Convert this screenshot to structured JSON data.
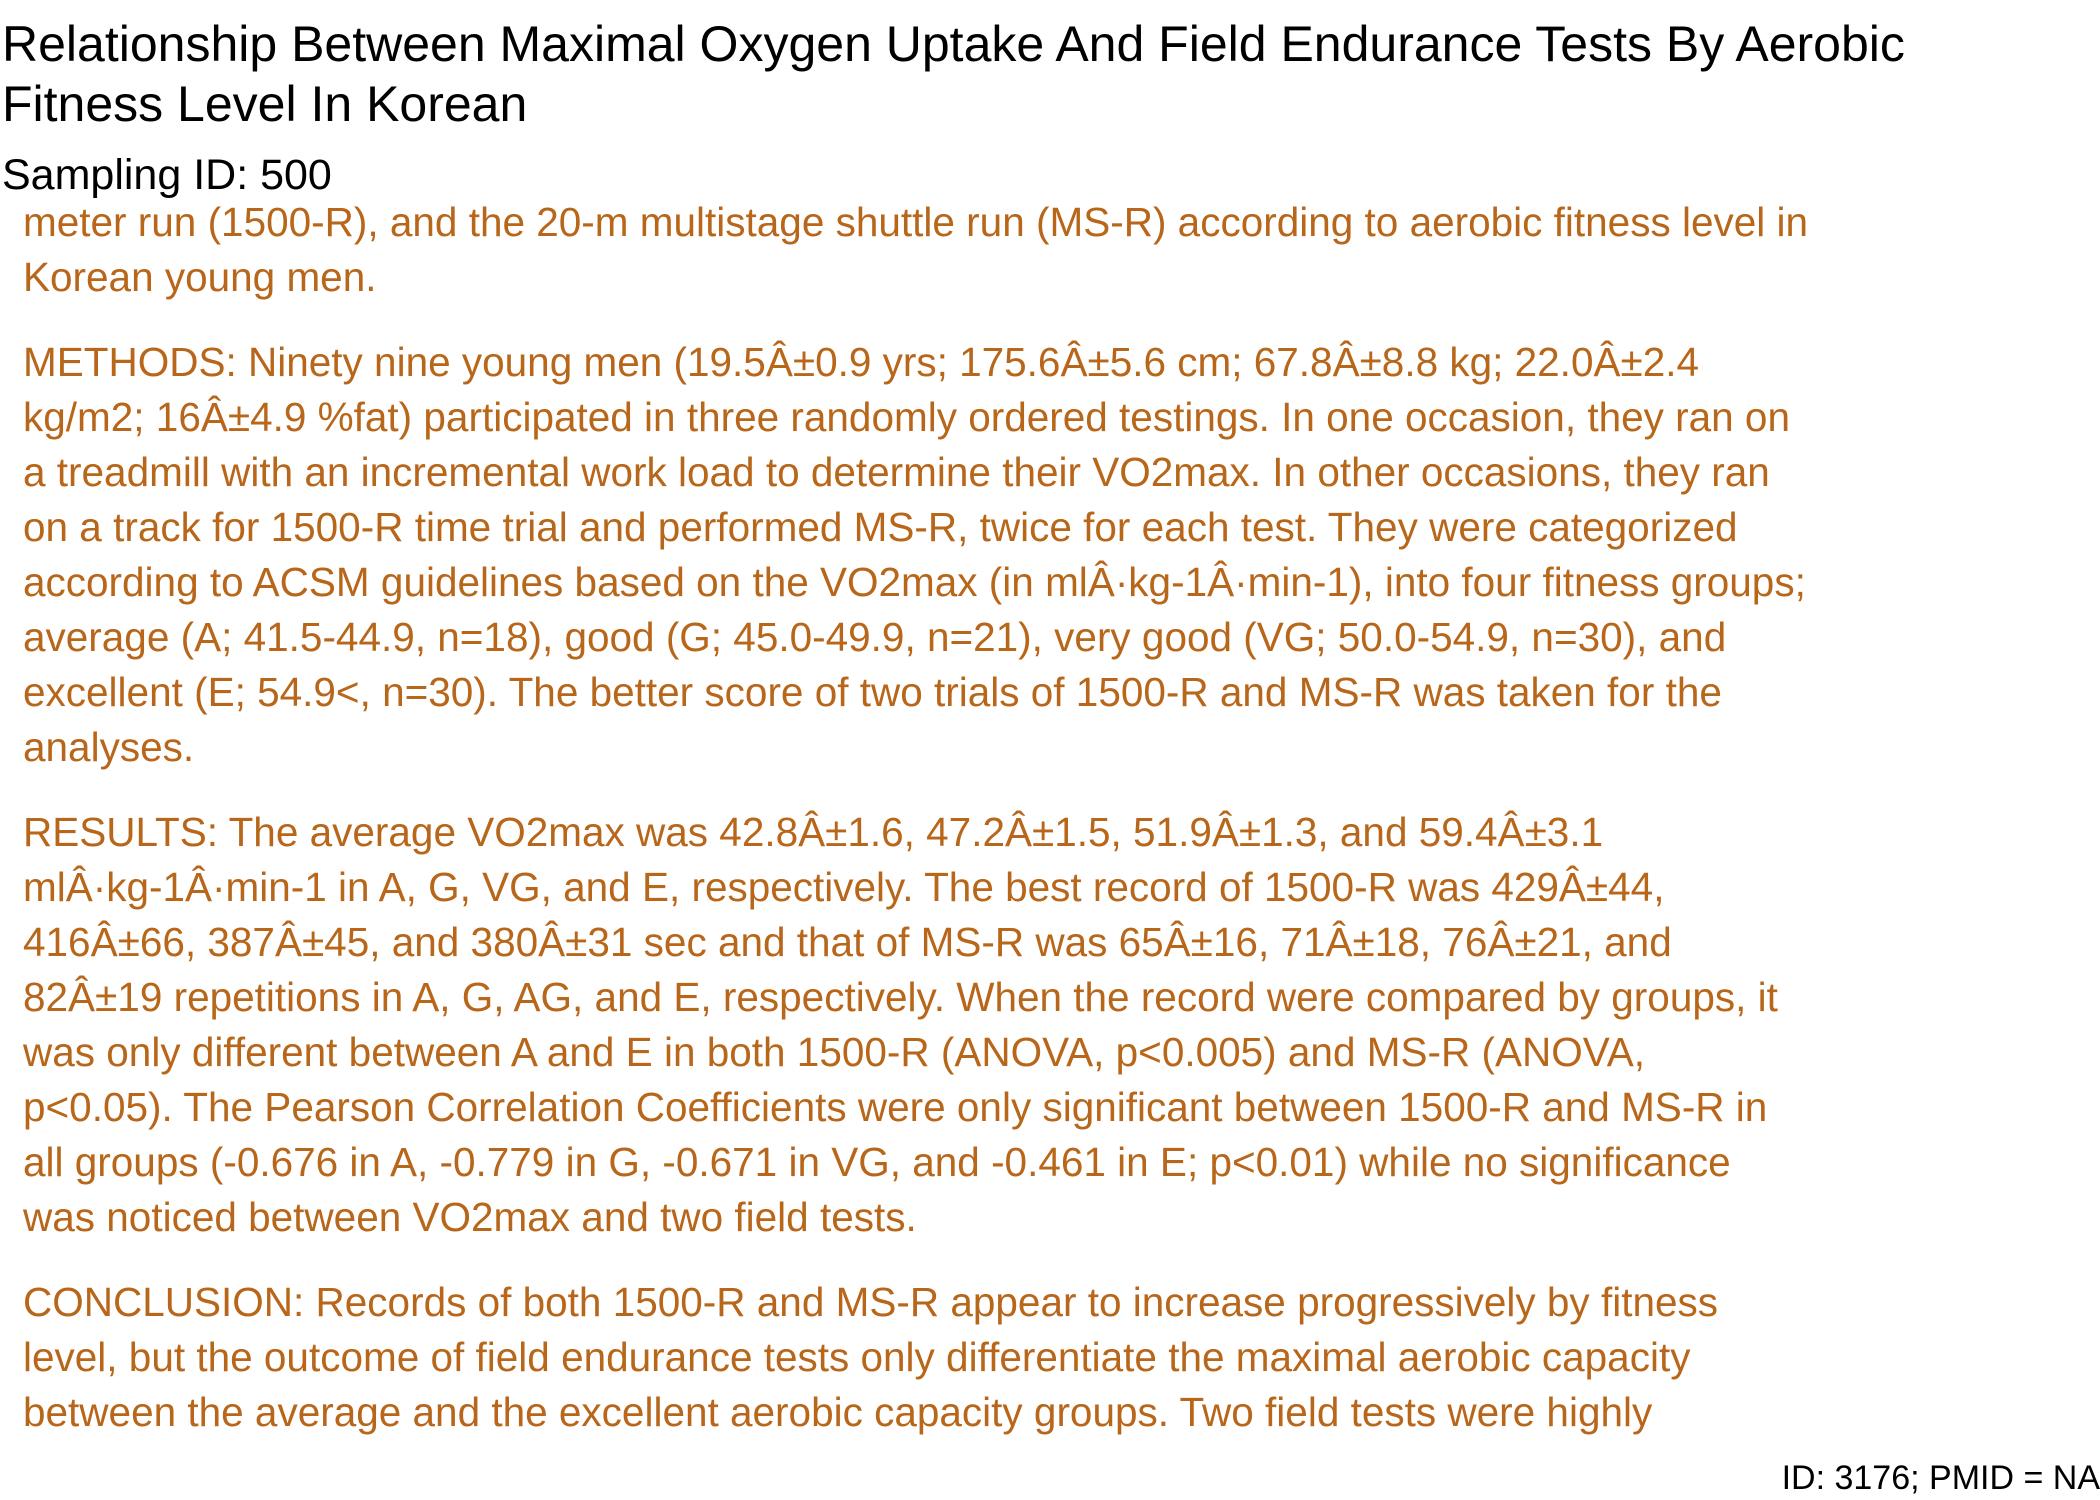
{
  "title_lines": [
    "Relationship Between Maximal Oxygen Uptake And Field Endurance Tests By Aerobic",
    "Fitness Level In Korean"
  ],
  "sampling_id": "Sampling ID: 500",
  "abstract": {
    "color": "#b8661a",
    "paragraphs": [
      {
        "lines": [
          "meter run (1500-R), and the 20-m multistage shuttle run (MS-R) according to aerobic fitness level in",
          "Korean young men."
        ]
      },
      {
        "lines": [
          "METHODS: Ninety nine young men (19.5Â±0.9 yrs; 175.6Â±5.6 cm; 67.8Â±8.8 kg; 22.0Â±2.4",
          "kg/m2; 16Â±4.9 %fat) participated in three randomly ordered testings. In one occasion, they ran on",
          "a treadmill with an incremental work load to determine their VO2max. In other occasions, they ran",
          "on a track for 1500-R time trial and performed MS-R, twice for each test. They were categorized",
          "according to ACSM guidelines based on the VO2max (in mlÂ·kg-1Â·min-1), into four fitness groups;",
          "average (A; 41.5-44.9, n=18), good (G; 45.0-49.9, n=21), very good (VG; 50.0-54.9, n=30), and",
          "excellent (E; 54.9<, n=30). The better score of two trials of 1500-R and MS-R was taken for the",
          "analyses."
        ]
      },
      {
        "lines": [
          "RESULTS: The average VO2max was 42.8Â±1.6, 47.2Â±1.5, 51.9Â±1.3, and 59.4Â±3.1",
          "mlÂ·kg-1Â·min-1 in A, G, VG, and E, respectively. The best record of 1500-R was 429Â±44,",
          "416Â±66, 387Â±45, and 380Â±31 sec and that of MS-R was 65Â±16, 71Â±18, 76Â±21, and",
          "82Â±19 repetitions in A, G, AG, and E, respectively. When the record were compared by groups, it",
          "was only different between A and E in both 1500-R (ANOVA, p<0.005) and MS-R (ANOVA,",
          "p<0.05). The Pearson Correlation Coefficients were only significant between 1500-R and MS-R in",
          "all groups (-0.676 in A, -0.779 in G, -0.671 in VG, and -0.461 in E; p<0.01) while no significance",
          "was noticed between VO2max and two field tests."
        ]
      },
      {
        "lines": [
          "CONCLUSION: Records of both 1500-R and MS-R appear to increase progressively by fitness",
          "level, but the outcome of field endurance tests only differentiate the maximal aerobic capacity",
          "between the average and the excellent aerobic capacity groups. Two field tests were highly"
        ]
      }
    ]
  },
  "footer_id": "ID: 3176; PMID = NA"
}
